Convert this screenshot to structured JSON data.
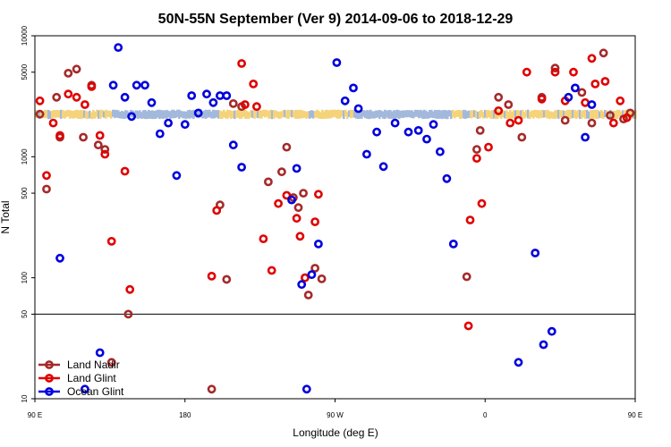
{
  "chart_data": {
    "type": "scatter",
    "title": "50N-55N September (Ver 9)   2014-09-06 to 2018-12-29",
    "xlabel": "Longitude (deg E)",
    "ylabel": "N Total",
    "x_scale": "linear",
    "y_scale": "log",
    "xlim": [
      90,
      450
    ],
    "ylim": [
      10,
      10000
    ],
    "x_ticks": [
      {
        "value": 90,
        "label": "90 E"
      },
      {
        "value": 180,
        "label": "180"
      },
      {
        "value": 270,
        "label": "90 W"
      },
      {
        "value": 360,
        "label": "0"
      },
      {
        "value": 450,
        "label": "90 E"
      },
      {
        "value": 540,
        "label": "180"
      }
    ],
    "y_ticks": [
      {
        "value": 10,
        "label": "10"
      },
      {
        "value": 50,
        "label": "50"
      },
      {
        "value": 100,
        "label": "100"
      },
      {
        "value": 500,
        "label": "500"
      },
      {
        "value": 1000,
        "label": "1000"
      },
      {
        "value": 5000,
        "label": "5000"
      },
      {
        "value": 10000,
        "label": "10000"
      }
    ],
    "reference_line": {
      "y": 50,
      "color": "#000000"
    },
    "grid": false,
    "legend_position": "bottom-left",
    "band": {
      "y_low": 2050,
      "y_high": 2450,
      "x_start": 90,
      "x_end": 540,
      "colors": [
        "#f5d37a",
        "#a3b9dc"
      ]
    },
    "series": [
      {
        "name": "Land Nadir",
        "color": "#a52a2a",
        "points": [
          {
            "x": 93,
            "y": 2250
          },
          {
            "x": 97,
            "y": 540
          },
          {
            "x": 103,
            "y": 3100
          },
          {
            "x": 105,
            "y": 1450
          },
          {
            "x": 110,
            "y": 4900
          },
          {
            "x": 115,
            "y": 5300
          },
          {
            "x": 119,
            "y": 1450
          },
          {
            "x": 124,
            "y": 3900
          },
          {
            "x": 128,
            "y": 1250
          },
          {
            "x": 132,
            "y": 1150
          },
          {
            "x": 136,
            "y": 20
          },
          {
            "x": 146,
            "y": 50
          },
          {
            "x": 196,
            "y": 12
          },
          {
            "x": 201,
            "y": 400
          },
          {
            "x": 205,
            "y": 97
          },
          {
            "x": 209,
            "y": 2750
          },
          {
            "x": 214,
            "y": 2600
          },
          {
            "x": 230,
            "y": 620
          },
          {
            "x": 238,
            "y": 750
          },
          {
            "x": 241,
            "y": 1200
          },
          {
            "x": 245,
            "y": 460
          },
          {
            "x": 248,
            "y": 380
          },
          {
            "x": 251,
            "y": 500
          },
          {
            "x": 254,
            "y": 72
          },
          {
            "x": 258,
            "y": 120
          },
          {
            "x": 262,
            "y": 98
          },
          {
            "x": 349,
            "y": 102
          },
          {
            "x": 355,
            "y": 1150
          },
          {
            "x": 357,
            "y": 1650
          },
          {
            "x": 368,
            "y": 3100
          },
          {
            "x": 374,
            "y": 2700
          },
          {
            "x": 382,
            "y": 1450
          },
          {
            "x": 394,
            "y": 3100
          },
          {
            "x": 402,
            "y": 5400
          },
          {
            "x": 408,
            "y": 2000
          },
          {
            "x": 418,
            "y": 3400
          },
          {
            "x": 424,
            "y": 1900
          },
          {
            "x": 431,
            "y": 7200
          },
          {
            "x": 435,
            "y": 2200
          },
          {
            "x": 443,
            "y": 2050
          },
          {
            "x": 447,
            "y": 2300
          }
        ]
      },
      {
        "name": "Land Glint",
        "color": "#e00000",
        "points": [
          {
            "x": 93,
            "y": 2900
          },
          {
            "x": 97,
            "y": 700
          },
          {
            "x": 101,
            "y": 1900
          },
          {
            "x": 105,
            "y": 1500
          },
          {
            "x": 110,
            "y": 3300
          },
          {
            "x": 115,
            "y": 3100
          },
          {
            "x": 120,
            "y": 2700
          },
          {
            "x": 124,
            "y": 3800
          },
          {
            "x": 129,
            "y": 1500
          },
          {
            "x": 132,
            "y": 1050
          },
          {
            "x": 136,
            "y": 200
          },
          {
            "x": 144,
            "y": 760
          },
          {
            "x": 147,
            "y": 80
          },
          {
            "x": 196,
            "y": 103
          },
          {
            "x": 199,
            "y": 360
          },
          {
            "x": 214,
            "y": 5900
          },
          {
            "x": 216,
            "y": 2700
          },
          {
            "x": 221,
            "y": 4000
          },
          {
            "x": 223,
            "y": 2600
          },
          {
            "x": 227,
            "y": 210
          },
          {
            "x": 232,
            "y": 115
          },
          {
            "x": 236,
            "y": 410
          },
          {
            "x": 241,
            "y": 480
          },
          {
            "x": 247,
            "y": 310
          },
          {
            "x": 249,
            "y": 220
          },
          {
            "x": 252,
            "y": 100
          },
          {
            "x": 258,
            "y": 290
          },
          {
            "x": 260,
            "y": 490
          },
          {
            "x": 350,
            "y": 40
          },
          {
            "x": 351,
            "y": 300
          },
          {
            "x": 355,
            "y": 970
          },
          {
            "x": 358,
            "y": 410
          },
          {
            "x": 362,
            "y": 1200
          },
          {
            "x": 368,
            "y": 2400
          },
          {
            "x": 375,
            "y": 1900
          },
          {
            "x": 380,
            "y": 2000
          },
          {
            "x": 385,
            "y": 5000
          },
          {
            "x": 394,
            "y": 3000
          },
          {
            "x": 402,
            "y": 5000
          },
          {
            "x": 408,
            "y": 2900
          },
          {
            "x": 413,
            "y": 5000
          },
          {
            "x": 420,
            "y": 2800
          },
          {
            "x": 424,
            "y": 6500
          },
          {
            "x": 426,
            "y": 4000
          },
          {
            "x": 432,
            "y": 4200
          },
          {
            "x": 437,
            "y": 1900
          },
          {
            "x": 441,
            "y": 2900
          },
          {
            "x": 445,
            "y": 2100
          }
        ]
      },
      {
        "name": "Ocean Glint",
        "color": "#0000dd",
        "points": [
          {
            "x": 105,
            "y": 145
          },
          {
            "x": 120,
            "y": 12
          },
          {
            "x": 129,
            "y": 24
          },
          {
            "x": 137,
            "y": 3900
          },
          {
            "x": 140,
            "y": 8000
          },
          {
            "x": 144,
            "y": 3100
          },
          {
            "x": 148,
            "y": 2150
          },
          {
            "x": 151,
            "y": 3900
          },
          {
            "x": 156,
            "y": 3900
          },
          {
            "x": 160,
            "y": 2800
          },
          {
            "x": 165,
            "y": 1550
          },
          {
            "x": 170,
            "y": 1900
          },
          {
            "x": 175,
            "y": 700
          },
          {
            "x": 180,
            "y": 1850
          },
          {
            "x": 184,
            "y": 3200
          },
          {
            "x": 188,
            "y": 2300
          },
          {
            "x": 193,
            "y": 3300
          },
          {
            "x": 197,
            "y": 2800
          },
          {
            "x": 201,
            "y": 3200
          },
          {
            "x": 205,
            "y": 3200
          },
          {
            "x": 209,
            "y": 1250
          },
          {
            "x": 214,
            "y": 820
          },
          {
            "x": 244,
            "y": 440
          },
          {
            "x": 247,
            "y": 800
          },
          {
            "x": 250,
            "y": 88
          },
          {
            "x": 253,
            "y": 12
          },
          {
            "x": 256,
            "y": 106
          },
          {
            "x": 260,
            "y": 190
          },
          {
            "x": 271,
            "y": 6000
          },
          {
            "x": 276,
            "y": 2900
          },
          {
            "x": 281,
            "y": 3700
          },
          {
            "x": 284,
            "y": 2500
          },
          {
            "x": 289,
            "y": 1050
          },
          {
            "x": 295,
            "y": 1600
          },
          {
            "x": 299,
            "y": 830
          },
          {
            "x": 306,
            "y": 1900
          },
          {
            "x": 314,
            "y": 1600
          },
          {
            "x": 320,
            "y": 1650
          },
          {
            "x": 325,
            "y": 1400
          },
          {
            "x": 329,
            "y": 1850
          },
          {
            "x": 333,
            "y": 1100
          },
          {
            "x": 337,
            "y": 660
          },
          {
            "x": 341,
            "y": 190
          },
          {
            "x": 380,
            "y": 20
          },
          {
            "x": 390,
            "y": 160
          },
          {
            "x": 395,
            "y": 28
          },
          {
            "x": 400,
            "y": 36
          },
          {
            "x": 410,
            "y": 3100
          },
          {
            "x": 414,
            "y": 3700
          },
          {
            "x": 420,
            "y": 1450
          },
          {
            "x": 424,
            "y": 2700
          }
        ]
      }
    ]
  }
}
